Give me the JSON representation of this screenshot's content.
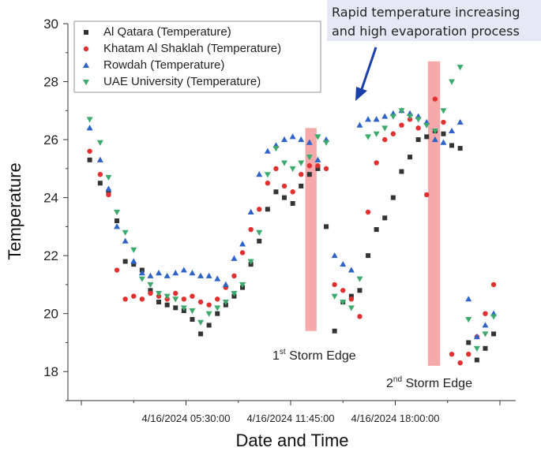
{
  "chart_data": {
    "type": "scatter",
    "xlabel": "Date and Time",
    "ylabel": "Temperature",
    "ylim": [
      17,
      30
    ],
    "yticks": [
      18,
      20,
      22,
      24,
      26,
      28,
      30
    ],
    "xticks": [
      "4/16/2024 05:30:00",
      "4/16/2024 11:45:00",
      "4/16/2024 18:00:00"
    ],
    "xlim": [
      0,
      100
    ],
    "grid": false,
    "legend_position": "top-left",
    "colors": {
      "al_qatara": "#333333",
      "khatam": "#e03030",
      "rowdah": "#2f63c8",
      "uaeu": "#3daa6d",
      "storm_band": "#f4a0a0",
      "arrow": "#1b3fa8",
      "callout_bg": "#e6e9f5"
    },
    "markers": {
      "al_qatara": "square",
      "khatam": "circle",
      "rowdah": "triangle-up",
      "uaeu": "triangle-down"
    },
    "series": [
      {
        "name": "Al Qatara (Temperature)",
        "x": [
          2.0,
          4.5,
          6.5,
          8.5,
          10.5,
          12.5,
          14.5,
          16.5,
          18.5,
          20.5,
          22.5,
          24.5,
          26.5,
          28.5,
          30.5,
          32.5,
          34.5,
          36.5,
          38.5,
          40.5,
          42.5,
          44.5,
          46.5,
          48.5,
          50.5,
          52.5,
          54.5,
          56.5,
          58.5,
          60.5,
          62.5,
          64.5,
          66.5,
          68.5,
          70.5,
          72.5,
          74.5,
          76.5,
          78.5,
          80.5,
          82.5,
          84.5,
          86.5,
          88.5,
          90.5,
          92.5,
          94.5,
          96.5,
          98.5
        ],
        "y": [
          25.3,
          24.5,
          24.2,
          23.2,
          21.8,
          21.7,
          21.5,
          20.8,
          20.4,
          20.3,
          20.2,
          20.1,
          19.8,
          19.3,
          19.6,
          20.0,
          20.3,
          20.6,
          20.9,
          21.7,
          22.5,
          23.6,
          24.2,
          24.0,
          23.8,
          24.4,
          24.8,
          25.0,
          23.0,
          19.4,
          20.4,
          20.6,
          20.8,
          22.0,
          22.9,
          23.3,
          24.0,
          24.9,
          25.4,
          26.0,
          26.1,
          26.3,
          26.2,
          25.8,
          25.7,
          19.0,
          18.4,
          18.8,
          19.3
        ]
      },
      {
        "name": "Khatam Al Shaklah (Temperature)",
        "x": [
          2.0,
          4.5,
          6.5,
          8.5,
          10.5,
          12.5,
          14.5,
          16.5,
          18.5,
          20.5,
          22.5,
          24.5,
          26.5,
          28.5,
          30.5,
          32.5,
          34.5,
          36.5,
          38.5,
          40.5,
          42.5,
          44.5,
          46.5,
          48.5,
          50.5,
          52.5,
          54.5,
          56.5,
          58.5,
          60.5,
          62.5,
          64.5,
          66.5,
          68.5,
          70.5,
          72.5,
          74.5,
          76.5,
          78.5,
          80.5,
          82.5,
          84.5,
          86.5,
          88.5,
          90.5,
          92.5,
          94.5,
          96.5,
          98.5
        ],
        "y": [
          25.6,
          24.8,
          24.1,
          21.5,
          20.5,
          20.6,
          20.5,
          20.7,
          20.6,
          20.5,
          20.7,
          20.5,
          20.6,
          20.4,
          20.3,
          20.5,
          20.9,
          21.3,
          22.1,
          22.9,
          23.6,
          24.5,
          25.0,
          24.4,
          24.2,
          24.8,
          25.1,
          25.1,
          25.0,
          21.0,
          20.8,
          20.5,
          19.9,
          23.5,
          25.2,
          26.0,
          26.2,
          26.5,
          26.7,
          26.4,
          24.1,
          27.4,
          26.6,
          18.6,
          18.3,
          18.6,
          19.2,
          20.0,
          21.0
        ],
        "note": "values estimated from marker positions"
      },
      {
        "name": "Rowdah (Temperature)",
        "x": [
          2.0,
          4.5,
          6.5,
          8.5,
          10.5,
          12.5,
          14.5,
          16.5,
          18.5,
          20.5,
          22.5,
          24.5,
          26.5,
          28.5,
          30.5,
          32.5,
          34.5,
          36.5,
          38.5,
          40.5,
          42.5,
          44.5,
          46.5,
          48.5,
          50.5,
          52.5,
          54.5,
          56.5,
          58.5,
          60.5,
          62.5,
          64.5,
          66.5,
          68.5,
          70.5,
          72.5,
          74.5,
          76.5,
          78.5,
          80.5,
          82.5,
          84.5,
          86.5,
          88.5,
          90.5,
          92.5,
          94.5,
          96.5,
          98.5
        ],
        "y": [
          26.4,
          25.3,
          24.3,
          23.0,
          22.5,
          21.8,
          21.4,
          21.3,
          21.4,
          21.3,
          21.4,
          21.5,
          21.4,
          21.3,
          21.3,
          21.2,
          21.0,
          21.9,
          22.4,
          23.5,
          24.8,
          25.6,
          25.8,
          26.0,
          26.1,
          26.0,
          25.9,
          25.3,
          26.0,
          22.0,
          21.7,
          21.5,
          26.5,
          26.7,
          26.7,
          26.8,
          26.9,
          27.0,
          26.9,
          26.8,
          26.6,
          26.0,
          25.9,
          26.3,
          26.6,
          20.5,
          19.2,
          19.6,
          20.0
        ],
        "note": "values estimated from marker positions"
      },
      {
        "name": "UAE University (Temperature)",
        "x": [
          2.0,
          4.5,
          6.5,
          8.5,
          10.5,
          12.5,
          14.5,
          16.5,
          18.5,
          20.5,
          22.5,
          24.5,
          26.5,
          28.5,
          30.5,
          32.5,
          34.5,
          36.5,
          38.5,
          40.5,
          42.5,
          44.5,
          46.5,
          48.5,
          50.5,
          52.5,
          54.5,
          56.5,
          58.5,
          60.5,
          62.5,
          64.5,
          66.5,
          68.5,
          70.5,
          72.5,
          74.5,
          76.5,
          78.5,
          80.5,
          82.5,
          84.5,
          86.5,
          88.5,
          90.5,
          92.5,
          94.5,
          96.5,
          98.5
        ],
        "y": [
          26.7,
          25.9,
          24.7,
          23.5,
          22.8,
          22.2,
          21.2,
          21.0,
          20.7,
          20.6,
          20.5,
          20.2,
          20.1,
          19.7,
          20.0,
          20.2,
          20.4,
          20.7,
          21.0,
          21.8,
          22.8,
          24.8,
          25.7,
          25.2,
          25.0,
          25.2,
          25.4,
          26.1,
          25.9,
          20.6,
          20.4,
          20.2,
          21.2,
          26.1,
          26.2,
          26.4,
          26.8,
          27.0,
          26.8,
          26.7,
          26.5,
          26.3,
          27.0,
          28.0,
          28.5,
          19.8,
          18.8,
          19.3,
          19.9
        ],
        "note": "values estimated from marker positions"
      }
    ],
    "storm_bands": [
      {
        "x_from": 53.5,
        "x_to": 56.2,
        "y_from": 19.4,
        "y_to": 26.4
      },
      {
        "x_from": 82.8,
        "x_to": 85.7,
        "y_from": 18.2,
        "y_to": 28.7
      }
    ],
    "annotations": {
      "storm1_prefix": "1",
      "storm1_sup": "st",
      "storm1_rest": " Storm Edge",
      "storm2_prefix": "2",
      "storm2_sup": "nd",
      "storm2_rest": " Storm Edge",
      "callout_line1": "Rapid temperature increasing",
      "callout_line2": "and high evaporation process"
    }
  }
}
